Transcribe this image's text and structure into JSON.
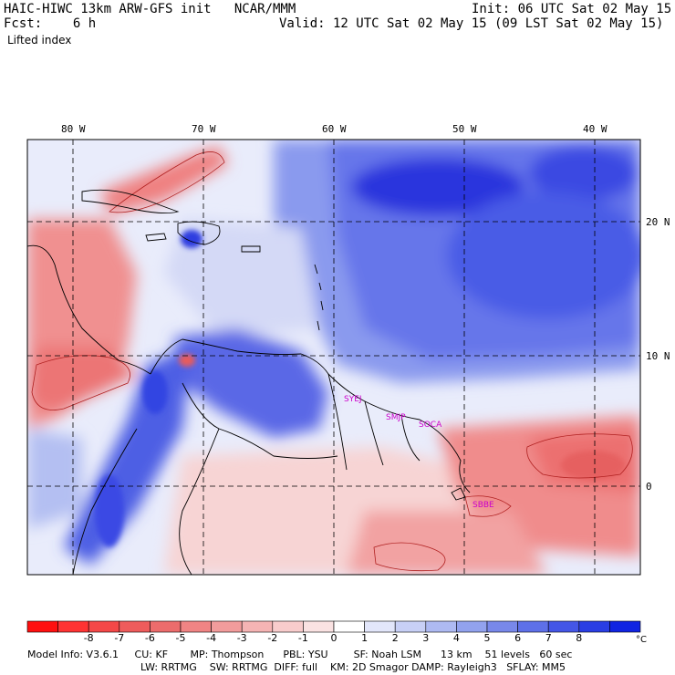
{
  "header": {
    "left_line1": "HAIC-HIWC 13km ARW-GFS init   NCAR/MMM",
    "left_line2": "Fcst:    6 h",
    "field": "Lifted index",
    "right_line1": "Init: 06 UTC Sat 02 May 15",
    "right_line2": "Valid: 12 UTC Sat 02 May 15 (09 LST Sat 02 May 15)"
  },
  "map": {
    "lon_labels": [
      "80 W",
      "70 W",
      "60 W",
      "50 W",
      "40 W"
    ],
    "lat_labels": [
      "20 N",
      "10 N",
      "0"
    ],
    "stations": [
      "SYEJ",
      "SMJP",
      "SOCA",
      "SBBE"
    ],
    "colors": {
      "strong_stable_blue": "#2222dd",
      "stable_blue": "#5566ee",
      "light_blue": "#b8c2f2",
      "neutral": "#f6f6f6",
      "light_red": "#f6c8c8",
      "unstable_red": "#ec6c6c",
      "station_label": "#cc00cc"
    }
  },
  "colorbar": {
    "labels": [
      "-8",
      "-7",
      "-6",
      "-5",
      "-4",
      "-3",
      "-2",
      "-1",
      "0",
      "1",
      "2",
      "3",
      "4",
      "5",
      "6",
      "7",
      "8"
    ],
    "unit": "°C",
    "colors": [
      "#ff1010",
      "#ff3333",
      "#f44848",
      "#ee5c5c",
      "#ec6c6c",
      "#f08484",
      "#f29c9c",
      "#f5b4b4",
      "#f8cccc",
      "#fae2e2",
      "#ffffff",
      "#e2e6fa",
      "#c8d0f6",
      "#aebaf2",
      "#92a2ee",
      "#7888ea",
      "#5e70e8",
      "#4456e6",
      "#2a3ee4",
      "#1024e2"
    ]
  },
  "footer": {
    "line1": "Model Info: V3.6.1     CU: KF       MP: Thompson      PBL: YSU        SF: Noah LSM      13 km    51 levels   60 sec",
    "line2": "LW: RRTMG    SW: RRTMG  DIFF: full    KM: 2D Smagor DAMP: Rayleigh3   SFLAY: MM5"
  }
}
